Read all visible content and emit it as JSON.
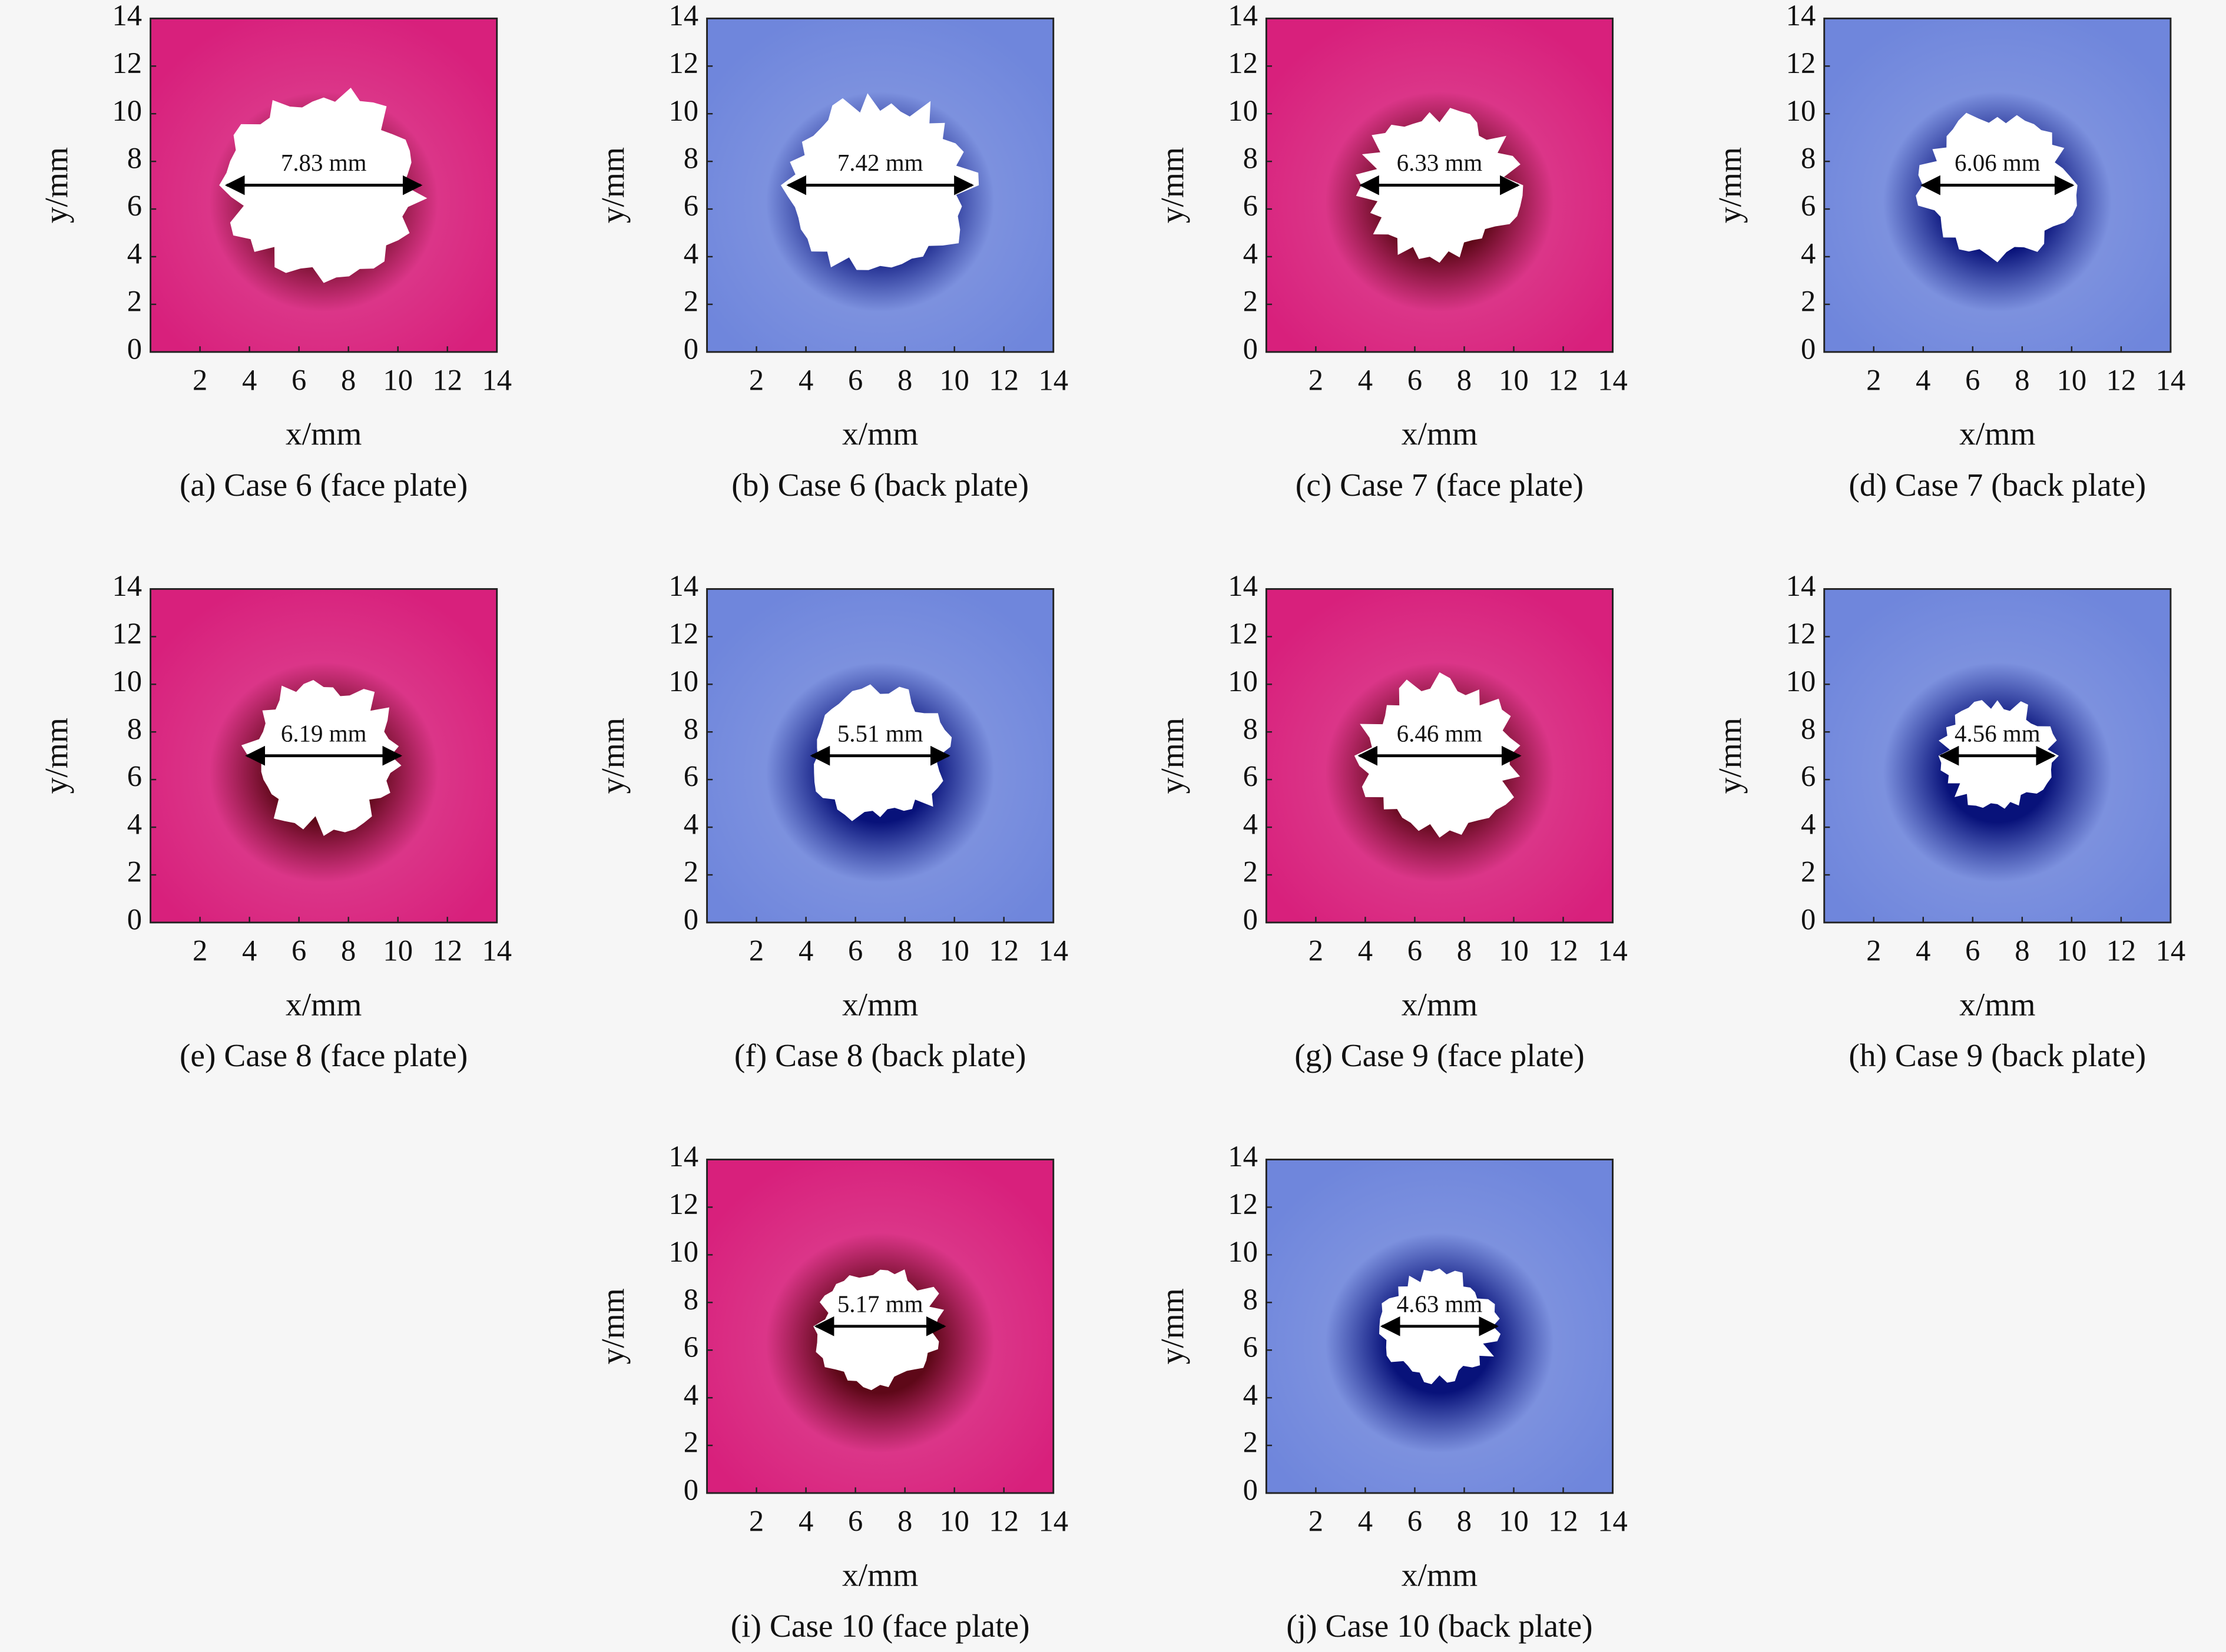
{
  "chart_data": [
    {
      "type": "contour",
      "caption": "(a) Case 6 (face plate)",
      "xlabel": "x/mm",
      "ylabel": "y/mm",
      "xlim": [
        0,
        14
      ],
      "ylim": [
        0,
        14
      ],
      "xticks": [
        2,
        4,
        6,
        8,
        10,
        12,
        14
      ],
      "yticks": [
        0,
        2,
        4,
        6,
        8,
        10,
        12,
        14
      ],
      "color": "#d8207c",
      "ring_color": "#5e0818",
      "values": [
        7.83
      ],
      "value_labels": [
        "7.83 mm"
      ]
    },
    {
      "type": "contour",
      "caption": "(b) Case 6 (back plate)",
      "xlabel": "x/mm",
      "ylabel": "y/mm",
      "xlim": [
        0,
        14
      ],
      "ylim": [
        0,
        14
      ],
      "xticks": [
        2,
        4,
        6,
        8,
        10,
        12,
        14
      ],
      "yticks": [
        0,
        2,
        4,
        6,
        8,
        10,
        12,
        14
      ],
      "color": "#6f86dc",
      "ring_color": "#08127a",
      "values": [
        7.42
      ],
      "value_labels": [
        "7.42 mm"
      ]
    },
    {
      "type": "contour",
      "caption": "(c) Case 7 (face plate)",
      "xlabel": "x/mm",
      "ylabel": "y/mm",
      "xlim": [
        0,
        14
      ],
      "ylim": [
        0,
        14
      ],
      "xticks": [
        2,
        4,
        6,
        8,
        10,
        12,
        14
      ],
      "yticks": [
        0,
        2,
        4,
        6,
        8,
        10,
        12,
        14
      ],
      "color": "#d8207c",
      "ring_color": "#5e0818",
      "values": [
        6.33
      ],
      "value_labels": [
        "6.33 mm"
      ]
    },
    {
      "type": "contour",
      "caption": "(d) Case 7 (back plate)",
      "xlabel": "x/mm",
      "ylabel": "y/mm",
      "xlim": [
        0,
        14
      ],
      "ylim": [
        0,
        14
      ],
      "xticks": [
        2,
        4,
        6,
        8,
        10,
        12,
        14
      ],
      "yticks": [
        0,
        2,
        4,
        6,
        8,
        10,
        12,
        14
      ],
      "color": "#6f86dc",
      "ring_color": "#08127a",
      "values": [
        6.06
      ],
      "value_labels": [
        "6.06 mm"
      ]
    },
    {
      "type": "contour",
      "caption": "(e) Case 8 (face plate)",
      "xlabel": "x/mm",
      "ylabel": "y/mm",
      "xlim": [
        0,
        14
      ],
      "ylim": [
        0,
        14
      ],
      "xticks": [
        2,
        4,
        6,
        8,
        10,
        12,
        14
      ],
      "yticks": [
        0,
        2,
        4,
        6,
        8,
        10,
        12,
        14
      ],
      "color": "#d8207c",
      "ring_color": "#5e0818",
      "values": [
        6.19
      ],
      "value_labels": [
        "6.19 mm"
      ]
    },
    {
      "type": "contour",
      "caption": "(f) Case 8 (back plate)",
      "xlabel": "x/mm",
      "ylabel": "y/mm",
      "xlim": [
        0,
        14
      ],
      "ylim": [
        0,
        14
      ],
      "xticks": [
        2,
        4,
        6,
        8,
        10,
        12,
        14
      ],
      "yticks": [
        0,
        2,
        4,
        6,
        8,
        10,
        12,
        14
      ],
      "color": "#6f86dc",
      "ring_color": "#08127a",
      "values": [
        5.51
      ],
      "value_labels": [
        "5.51 mm"
      ]
    },
    {
      "type": "contour",
      "caption": "(g) Case 9 (face plate)",
      "xlabel": "x/mm",
      "ylabel": "y/mm",
      "xlim": [
        0,
        14
      ],
      "ylim": [
        0,
        14
      ],
      "xticks": [
        2,
        4,
        6,
        8,
        10,
        12,
        14
      ],
      "yticks": [
        0,
        2,
        4,
        6,
        8,
        10,
        12,
        14
      ],
      "color": "#d8207c",
      "ring_color": "#5e0818",
      "values": [
        6.46
      ],
      "value_labels": [
        "6.46 mm"
      ]
    },
    {
      "type": "contour",
      "caption": "(h) Case 9 (back plate)",
      "xlabel": "x/mm",
      "ylabel": "y/mm",
      "xlim": [
        0,
        14
      ],
      "ylim": [
        0,
        14
      ],
      "xticks": [
        2,
        4,
        6,
        8,
        10,
        12,
        14
      ],
      "yticks": [
        0,
        2,
        4,
        6,
        8,
        10,
        12,
        14
      ],
      "color": "#6f86dc",
      "ring_color": "#08127a",
      "values": [
        4.56
      ],
      "value_labels": [
        "4.56 mm"
      ]
    },
    {
      "type": "contour",
      "caption": "(i) Case 10 (face plate)",
      "xlabel": "x/mm",
      "ylabel": "y/mm",
      "xlim": [
        0,
        14
      ],
      "ylim": [
        0,
        14
      ],
      "xticks": [
        2,
        4,
        6,
        8,
        10,
        12,
        14
      ],
      "yticks": [
        0,
        2,
        4,
        6,
        8,
        10,
        12,
        14
      ],
      "color": "#d8207c",
      "ring_color": "#5e0818",
      "values": [
        5.17
      ],
      "value_labels": [
        "5.17 mm"
      ]
    },
    {
      "type": "contour",
      "caption": "(j) Case 10 (back plate)",
      "xlabel": "x/mm",
      "ylabel": "y/mm",
      "xlim": [
        0,
        14
      ],
      "ylim": [
        0,
        14
      ],
      "xticks": [
        2,
        4,
        6,
        8,
        10,
        12,
        14
      ],
      "yticks": [
        0,
        2,
        4,
        6,
        8,
        10,
        12,
        14
      ],
      "color": "#6f86dc",
      "ring_color": "#08127a",
      "values": [
        4.63
      ],
      "value_labels": [
        "4.63 mm"
      ]
    }
  ]
}
